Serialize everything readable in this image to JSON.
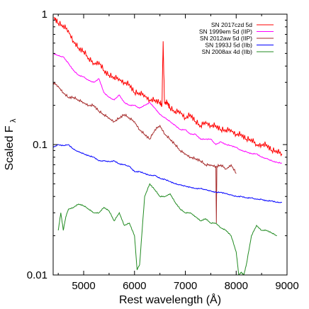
{
  "chart_data": {
    "type": "line",
    "xlabel": "Rest wavelength (Å)",
    "ylabel": "Scaled F",
    "ylabel_subscript": "λ",
    "xlim": [
      4400,
      9000
    ],
    "ylim": [
      0.01,
      1
    ],
    "yscale": "log",
    "x_ticks": [
      {
        "value": 5000,
        "label": "5000"
      },
      {
        "value": 6000,
        "label": "6000"
      },
      {
        "value": 7000,
        "label": "7000"
      },
      {
        "value": 8000,
        "label": "8000"
      },
      {
        "value": 9000,
        "label": "9000"
      }
    ],
    "y_ticks": [
      {
        "value": 1,
        "label": "1"
      },
      {
        "value": 0.1,
        "label": "0.1"
      },
      {
        "value": 0.01,
        "label": "0.01"
      }
    ],
    "legend": "top-right",
    "series": [
      {
        "name": "SN 2017czd 5d",
        "color": "#ff0000",
        "x": [
          4420,
          4500,
          4600,
          4700,
          4800,
          4900,
          5000,
          5100,
          5200,
          5300,
          5400,
          5500,
          5600,
          5700,
          5800,
          5900,
          6000,
          6100,
          6200,
          6300,
          6400,
          6500,
          6540,
          6563,
          6590,
          6650,
          6700,
          6800,
          6900,
          7000,
          7100,
          7200,
          7300,
          7400,
          7500,
          7600,
          7700,
          7800,
          7900,
          8000,
          8100,
          8200,
          8300,
          8400,
          8500,
          8600,
          8700,
          8800,
          8900
        ],
        "y": [
          0.95,
          0.85,
          0.82,
          0.75,
          0.62,
          0.55,
          0.52,
          0.46,
          0.42,
          0.43,
          0.37,
          0.34,
          0.33,
          0.32,
          0.3,
          0.29,
          0.25,
          0.25,
          0.24,
          0.22,
          0.22,
          0.21,
          0.2,
          0.62,
          0.21,
          0.21,
          0.19,
          0.18,
          0.18,
          0.16,
          0.17,
          0.15,
          0.14,
          0.15,
          0.14,
          0.14,
          0.13,
          0.13,
          0.13,
          0.12,
          0.12,
          0.11,
          0.11,
          0.1,
          0.1,
          0.1,
          0.09,
          0.09,
          0.085
        ]
      },
      {
        "name": "SN 1999em 5d (IIP)",
        "color": "#ff00ff",
        "x": [
          4400,
          4500,
          4600,
          4700,
          4800,
          4900,
          5000,
          5100,
          5200,
          5300,
          5400,
          5500,
          5600,
          5700,
          5800,
          5900,
          6000,
          6100,
          6200,
          6300,
          6400,
          6500,
          6600,
          6700,
          6800,
          6900,
          7000,
          7100,
          7200,
          7300,
          7400,
          7500,
          7600,
          7700,
          7800,
          7900,
          8000,
          8100,
          8200,
          8300,
          8400,
          8500,
          8600,
          8700,
          8800,
          8900
        ],
        "y": [
          0.5,
          0.48,
          0.47,
          0.42,
          0.37,
          0.34,
          0.33,
          0.31,
          0.3,
          0.32,
          0.25,
          0.23,
          0.22,
          0.24,
          0.21,
          0.2,
          0.2,
          0.19,
          0.2,
          0.21,
          0.19,
          0.17,
          0.16,
          0.15,
          0.14,
          0.13,
          0.13,
          0.12,
          0.12,
          0.11,
          0.11,
          0.11,
          0.1,
          0.105,
          0.1,
          0.098,
          0.095,
          0.09,
          0.088,
          0.085,
          0.085,
          0.08,
          0.078,
          0.075,
          0.073,
          0.072
        ]
      },
      {
        "name": "SN 2012aw 5d (IIP)",
        "color": "#a52a2a",
        "x": [
          4400,
          4500,
          4600,
          4700,
          4800,
          4900,
          5000,
          5100,
          5200,
          5300,
          5400,
          5500,
          5600,
          5700,
          5800,
          5900,
          6000,
          6100,
          6200,
          6300,
          6400,
          6500,
          6600,
          6700,
          6800,
          6900,
          7000,
          7100,
          7200,
          7300,
          7400,
          7500,
          7600,
          7610,
          7620,
          7700,
          7800,
          7900,
          8000
        ],
        "y": [
          0.3,
          0.28,
          0.25,
          0.23,
          0.23,
          0.22,
          0.21,
          0.2,
          0.2,
          0.18,
          0.17,
          0.16,
          0.15,
          0.16,
          0.17,
          0.16,
          0.15,
          0.13,
          0.12,
          0.11,
          0.13,
          0.14,
          0.12,
          0.11,
          0.1,
          0.09,
          0.085,
          0.08,
          0.078,
          0.075,
          0.07,
          0.07,
          0.068,
          0.025,
          0.068,
          0.07,
          0.065,
          0.07,
          0.06
        ]
      },
      {
        "name": "SN 1993J 5d (IIb)",
        "color": "#0000ff",
        "x": [
          4400,
          4500,
          4600,
          4700,
          4800,
          4900,
          5000,
          5100,
          5200,
          5300,
          5400,
          5500,
          5600,
          5700,
          5800,
          5900,
          6000,
          6100,
          6200,
          6300,
          6400,
          6500,
          6600,
          6700,
          6800,
          6900,
          7000,
          7100,
          7200,
          7300,
          7400,
          7500,
          7600,
          7700,
          7800,
          7900,
          8000,
          8100,
          8200,
          8300,
          8400,
          8500,
          8600,
          8700,
          8800,
          8900
        ],
        "y": [
          0.095,
          0.1,
          0.098,
          0.1,
          0.092,
          0.088,
          0.085,
          0.082,
          0.08,
          0.075,
          0.075,
          0.074,
          0.075,
          0.071,
          0.07,
          0.068,
          0.062,
          0.062,
          0.06,
          0.058,
          0.058,
          0.055,
          0.054,
          0.052,
          0.05,
          0.049,
          0.048,
          0.047,
          0.046,
          0.046,
          0.045,
          0.044,
          0.043,
          0.043,
          0.042,
          0.041,
          0.04,
          0.04,
          0.039,
          0.039,
          0.038,
          0.038,
          0.037,
          0.037,
          0.036,
          0.036
        ]
      },
      {
        "name": "SN 2008ax 4d (IIb)",
        "color": "#228b22",
        "x": [
          4500,
          4550,
          4600,
          4650,
          4700,
          4800,
          4900,
          5000,
          5100,
          5200,
          5300,
          5400,
          5500,
          5600,
          5700,
          5800,
          5900,
          6000,
          6050,
          6100,
          6200,
          6300,
          6400,
          6500,
          6600,
          6700,
          6800,
          6900,
          7000,
          7100,
          7200,
          7300,
          7400,
          7500,
          7600,
          7700,
          7800,
          7900,
          8000,
          8050,
          8100,
          8150,
          8200,
          8300,
          8400,
          8500,
          8600,
          8700,
          8800
        ],
        "y": [
          0.022,
          0.03,
          0.022,
          0.028,
          0.032,
          0.033,
          0.035,
          0.034,
          0.032,
          0.03,
          0.03,
          0.033,
          0.031,
          0.026,
          0.03,
          0.024,
          0.025,
          0.02,
          0.011,
          0.012,
          0.04,
          0.05,
          0.045,
          0.04,
          0.04,
          0.042,
          0.036,
          0.032,
          0.03,
          0.03,
          0.028,
          0.026,
          0.027,
          0.025,
          0.025,
          0.023,
          0.022,
          0.02,
          0.015,
          0.01,
          0.0105,
          0.01,
          0.012,
          0.02,
          0.024,
          0.022,
          0.022,
          0.021,
          0.02
        ]
      }
    ]
  }
}
